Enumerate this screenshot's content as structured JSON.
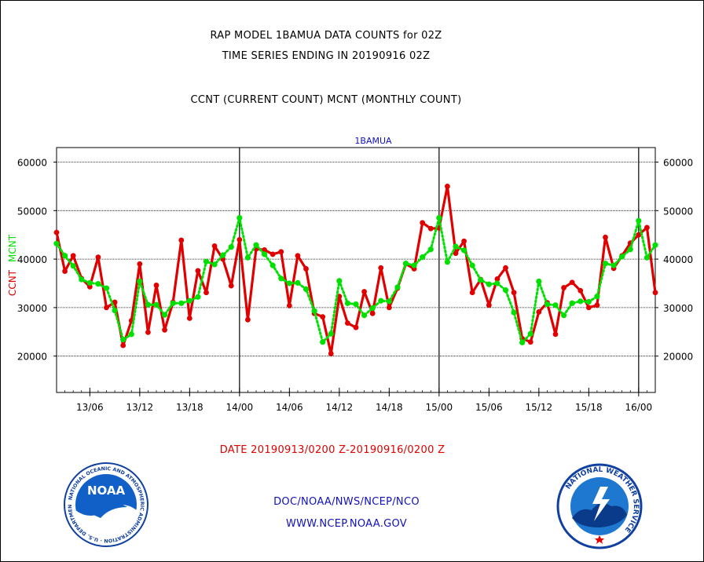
{
  "titles": {
    "line1": "RAP MODEL 1BAMUA DATA COUNTS for 02Z",
    "line2": "TIME SERIES ENDING IN 20190916 02Z",
    "line3": "CCNT (CURRENT COUNT) MCNT (MONTHLY COUNT)"
  },
  "footer": {
    "date_range": "DATE 20190913/0200 Z-20190916/0200 Z",
    "org": "DOC/NOAA/NWS/NCEP/NCO",
    "url": "WWW.NCEP.NOAA.GOV"
  },
  "logos": {
    "noaa_label": "NOAA",
    "noaa_ring_text": "NATIONAL OCEANIC AND ATMOSPHERIC ADMINISTRATION · U.S. DEPARTMENT OF COMMERCE ·",
    "nws_ring_text": "NATIONAL WEATHER SERVICE"
  },
  "chart_data": {
    "type": "line",
    "title": "1BAMUA",
    "x_unit": "hours since 13/02",
    "xlim": [
      0,
      72
    ],
    "ylim": [
      12500,
      63000
    ],
    "y_ticks": [
      20000,
      30000,
      40000,
      50000,
      60000
    ],
    "y_tick_labels": [
      "20000",
      "30000",
      "40000",
      "50000",
      "60000"
    ],
    "x_ticks": [
      {
        "x": 4,
        "label": "13/06"
      },
      {
        "x": 10,
        "label": "13/12"
      },
      {
        "x": 16,
        "label": "13/18"
      },
      {
        "x": 22,
        "label": "14/00"
      },
      {
        "x": 28,
        "label": "14/06"
      },
      {
        "x": 34,
        "label": "14/12"
      },
      {
        "x": 40,
        "label": "14/18"
      },
      {
        "x": 46,
        "label": "15/00"
      },
      {
        "x": 52,
        "label": "15/06"
      },
      {
        "x": 58,
        "label": "15/12"
      },
      {
        "x": 64,
        "label": "15/18"
      },
      {
        "x": 70,
        "label": "16/00"
      }
    ],
    "day_boundaries": [
      22,
      46,
      70
    ],
    "grid": true,
    "left_axis_labels": [
      {
        "text": "CCNT",
        "color": "#e00000"
      },
      {
        "text": "MCNT",
        "color": "#00e000"
      }
    ],
    "series": [
      {
        "name": "CCNT",
        "color": "#e00000",
        "style": "solid",
        "x": [
          0,
          1,
          2,
          3,
          4,
          5,
          6,
          7,
          8,
          9,
          10,
          11,
          12,
          13,
          14,
          15,
          16,
          17,
          18,
          19,
          20,
          21,
          22,
          23,
          24,
          25,
          26,
          27,
          28,
          29,
          30,
          31,
          32,
          33,
          34,
          35,
          36,
          37,
          38,
          39,
          40,
          41,
          42,
          43,
          44,
          45,
          46,
          47,
          48,
          49,
          50,
          51,
          52,
          53,
          54,
          55,
          56,
          57,
          58,
          59,
          60,
          61,
          62,
          63,
          64,
          65,
          66,
          67,
          68,
          69,
          70,
          71,
          72
        ],
        "values": [
          45500,
          37500,
          40700,
          36000,
          34300,
          40400,
          30000,
          31100,
          22200,
          27300,
          39000,
          24900,
          34600,
          25400,
          31100,
          43900,
          27800,
          37600,
          33100,
          42700,
          40000,
          34500,
          44000,
          27500,
          42100,
          41900,
          41000,
          41500,
          30400,
          40700,
          38000,
          28800,
          28100,
          20500,
          32300,
          26800,
          25900,
          33300,
          28800,
          38200,
          30000,
          34000,
          39000,
          38000,
          47500,
          46300,
          46400,
          55000,
          41200,
          43700,
          33100,
          35800,
          30500,
          35900,
          38200,
          33100,
          23600,
          22900,
          29100,
          31000,
          24500,
          34100,
          35200,
          33500,
          30000,
          30500,
          44500,
          38100,
          40700,
          43300,
          45000,
          46500,
          33100
        ]
      },
      {
        "name": "MCNT",
        "color": "#00e000",
        "style": "dotted",
        "x": [
          0,
          1,
          2,
          3,
          4,
          5,
          6,
          7,
          8,
          9,
          10,
          11,
          12,
          13,
          14,
          15,
          16,
          17,
          18,
          19,
          20,
          21,
          22,
          23,
          24,
          25,
          26,
          27,
          28,
          29,
          30,
          31,
          32,
          33,
          34,
          35,
          36,
          37,
          38,
          39,
          40,
          41,
          42,
          43,
          44,
          45,
          46,
          47,
          48,
          49,
          50,
          51,
          52,
          53,
          54,
          55,
          56,
          57,
          58,
          59,
          60,
          61,
          62,
          63,
          64,
          65,
          66,
          67,
          68,
          69,
          70,
          71,
          72
        ],
        "values": [
          43200,
          40700,
          38600,
          35800,
          35100,
          34900,
          34000,
          29400,
          23400,
          24500,
          35400,
          30600,
          30600,
          28500,
          30900,
          30900,
          31400,
          32200,
          39500,
          38900,
          40800,
          42500,
          48500,
          40300,
          42900,
          41000,
          38700,
          36000,
          35000,
          35100,
          33800,
          29300,
          22900,
          24600,
          35500,
          30900,
          30700,
          28400,
          29900,
          31400,
          31300,
          34200,
          39100,
          38700,
          40400,
          42000,
          48500,
          39400,
          42600,
          41800,
          38700,
          35700,
          34800,
          35000,
          33600,
          29000,
          22800,
          24600,
          35400,
          30700,
          30500,
          28400,
          30900,
          31300,
          31200,
          32300,
          39100,
          38700,
          40500,
          42000,
          47900,
          40300,
          42900
        ]
      }
    ]
  }
}
